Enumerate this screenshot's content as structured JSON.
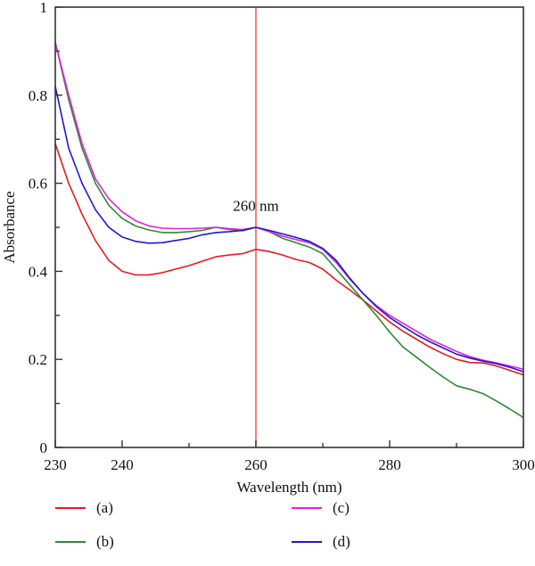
{
  "chart_data": {
    "type": "line",
    "title": "",
    "xlabel": "Wavelength (nm)",
    "ylabel": "Absorbance",
    "xlim": [
      230,
      300
    ],
    "ylim": [
      0,
      1
    ],
    "x_ticks": [
      230,
      240,
      260,
      280,
      300
    ],
    "x_minor_ticks": [
      250,
      270,
      290
    ],
    "y_ticks": [
      0,
      0.2,
      0.4,
      0.6,
      0.8,
      1
    ],
    "y_tick_labels": [
      "0",
      "0.2",
      "0.4",
      "0.6",
      "0.8",
      "1"
    ],
    "y_minor_ticks": [
      0.1,
      0.3,
      0.5,
      0.7,
      0.9
    ],
    "grid": false,
    "legend_position": "bottom",
    "annotations": [
      {
        "type": "vline",
        "x": 260,
        "color": "#e8585a"
      },
      {
        "type": "text",
        "text": "260 nm",
        "x": 260,
        "y": 0.55
      }
    ],
    "series": [
      {
        "name": "(a)",
        "color": "#e8191e",
        "x": [
          230,
          232,
          234,
          236,
          238,
          240,
          242,
          244,
          246,
          248,
          250,
          252,
          254,
          256,
          258,
          260,
          262,
          264,
          266,
          268,
          270,
          272,
          274,
          276,
          278,
          280,
          282,
          284,
          286,
          288,
          290,
          292,
          294,
          296,
          298,
          300
        ],
        "values": [
          0.69,
          0.6,
          0.53,
          0.47,
          0.425,
          0.4,
          0.392,
          0.392,
          0.397,
          0.405,
          0.413,
          0.423,
          0.433,
          0.437,
          0.44,
          0.45,
          0.445,
          0.437,
          0.427,
          0.42,
          0.405,
          0.38,
          0.358,
          0.335,
          0.31,
          0.285,
          0.264,
          0.246,
          0.228,
          0.213,
          0.2,
          0.193,
          0.192,
          0.185,
          0.175,
          0.165
        ]
      },
      {
        "name": "(b)",
        "color": "#2e8b2e",
        "x": [
          230,
          232,
          234,
          236,
          238,
          240,
          242,
          244,
          246,
          248,
          250,
          252,
          254,
          256,
          258,
          260,
          262,
          264,
          266,
          268,
          270,
          272,
          274,
          276,
          278,
          280,
          282,
          284,
          286,
          288,
          290,
          292,
          294,
          296,
          298,
          300
        ],
        "values": [
          0.92,
          0.79,
          0.68,
          0.6,
          0.55,
          0.52,
          0.503,
          0.494,
          0.488,
          0.488,
          0.49,
          0.493,
          0.5,
          0.495,
          0.492,
          0.5,
          0.49,
          0.475,
          0.465,
          0.455,
          0.44,
          0.405,
          0.37,
          0.335,
          0.3,
          0.262,
          0.228,
          0.205,
          0.182,
          0.16,
          0.14,
          0.132,
          0.122,
          0.105,
          0.087,
          0.068
        ]
      },
      {
        "name": "(c)",
        "color": "#e020e0",
        "x": [
          230,
          232,
          234,
          236,
          238,
          240,
          242,
          244,
          246,
          248,
          250,
          252,
          254,
          256,
          258,
          260,
          262,
          264,
          266,
          268,
          270,
          272,
          274,
          276,
          278,
          280,
          282,
          284,
          286,
          288,
          290,
          292,
          294,
          296,
          298,
          300
        ],
        "values": [
          0.92,
          0.8,
          0.69,
          0.61,
          0.565,
          0.535,
          0.515,
          0.503,
          0.498,
          0.497,
          0.497,
          0.498,
          0.5,
          0.497,
          0.495,
          0.5,
          0.49,
          0.48,
          0.472,
          0.465,
          0.45,
          0.42,
          0.383,
          0.35,
          0.322,
          0.3,
          0.282,
          0.264,
          0.246,
          0.232,
          0.218,
          0.206,
          0.198,
          0.192,
          0.185,
          0.178
        ]
      },
      {
        "name": "(d)",
        "color": "#1a1ad0",
        "x": [
          230,
          232,
          234,
          236,
          238,
          240,
          242,
          244,
          246,
          248,
          250,
          252,
          254,
          256,
          258,
          260,
          262,
          264,
          266,
          268,
          270,
          272,
          274,
          276,
          278,
          280,
          282,
          284,
          286,
          288,
          290,
          292,
          294,
          296,
          298,
          300
        ],
        "values": [
          0.82,
          0.68,
          0.6,
          0.54,
          0.5,
          0.478,
          0.468,
          0.464,
          0.465,
          0.47,
          0.475,
          0.483,
          0.488,
          0.49,
          0.493,
          0.5,
          0.493,
          0.485,
          0.477,
          0.468,
          0.452,
          0.425,
          0.385,
          0.35,
          0.32,
          0.295,
          0.275,
          0.256,
          0.24,
          0.226,
          0.212,
          0.203,
          0.196,
          0.19,
          0.182,
          0.172
        ]
      }
    ]
  },
  "legend": {
    "items": [
      {
        "label": "(a)",
        "color": "#e8191e"
      },
      {
        "label": "(c)",
        "color": "#e020e0"
      },
      {
        "label": "(b)",
        "color": "#2e8b2e"
      },
      {
        "label": "(d)",
        "color": "#1a1ad0"
      }
    ]
  }
}
